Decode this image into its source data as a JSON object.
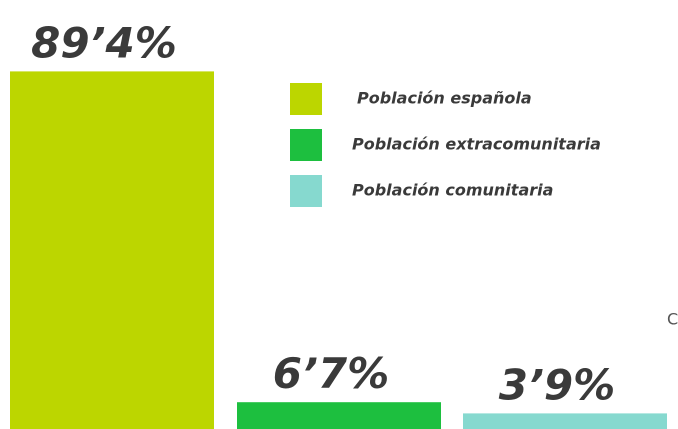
{
  "chart_data": {
    "type": "bar",
    "series": [
      {
        "name": "Población española",
        "color": "#bcd600",
        "values": [
          89.4
        ],
        "value_labels": [
          "89’4%"
        ]
      },
      {
        "name": "Población extracomunitaria",
        "color": "#1dbf3f",
        "values": [
          6.7
        ],
        "value_labels": [
          "6’7%"
        ]
      },
      {
        "name": "Población comunitaria",
        "color": "#86d9cf",
        "values": [
          3.9
        ],
        "value_labels": [
          "3’9%"
        ]
      }
    ],
    "ylim": [
      0,
      100
    ],
    "annotations": [
      "C"
    ]
  }
}
